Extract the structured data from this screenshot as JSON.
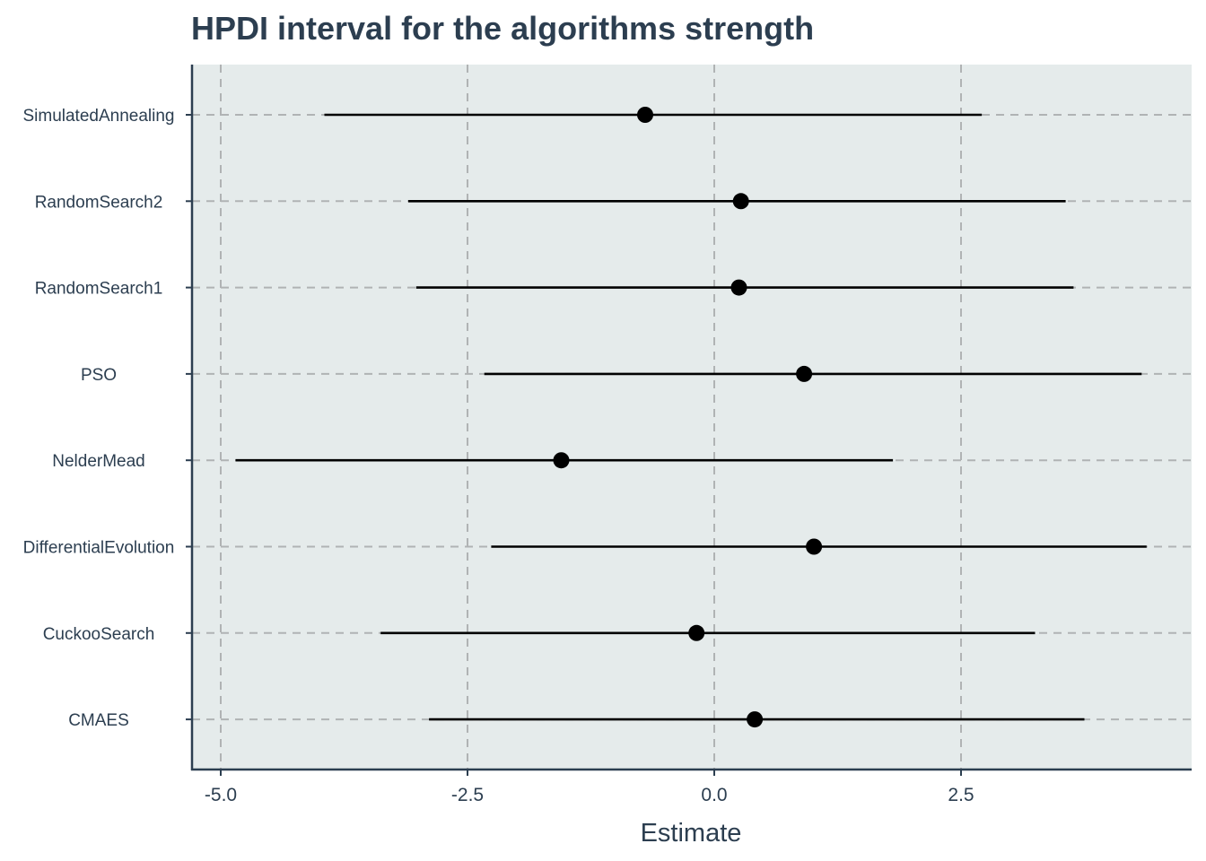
{
  "chart_data": {
    "type": "scatter",
    "subtype": "point-interval",
    "title": "HPDI interval for the algorithms strength",
    "xlabel": "Estimate",
    "ylabel": "",
    "xlim": [
      -5.3,
      4.85
    ],
    "xticks": [
      -5.0,
      -2.5,
      0.0,
      2.5
    ],
    "xtick_labels": [
      "-5.0",
      "-2.5",
      "0.0",
      "2.5"
    ],
    "grid": true,
    "legend": "none",
    "categories": [
      "SimulatedAnnealing",
      "RandomSearch2",
      "RandomSearch1",
      "PSO",
      "NelderMead",
      "DifferentialEvolution",
      "CuckooSearch",
      "CMAES"
    ],
    "estimate": [
      -0.7,
      0.27,
      0.25,
      0.91,
      -1.55,
      1.01,
      -0.18,
      0.41
    ],
    "lower": [
      -3.95,
      -3.1,
      -3.02,
      -2.33,
      -4.85,
      -2.26,
      -3.38,
      -2.89
    ],
    "upper": [
      2.71,
      3.56,
      3.64,
      4.33,
      1.81,
      4.38,
      3.25,
      3.75
    ]
  },
  "colors": {
    "panel_background": "#e5ebeb",
    "grid": "#b0b3b4",
    "point": "#000000",
    "interval": "#000000",
    "text": "#2c3e50",
    "axis_line": "#2c3e50"
  }
}
